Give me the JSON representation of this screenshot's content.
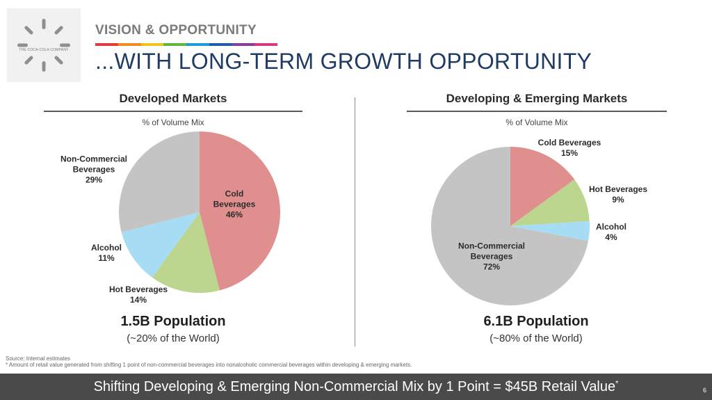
{
  "logo": {
    "text": "THE COCA-COLA COMPANY"
  },
  "header": {
    "section_label": "VISION & OPPORTUNITY",
    "title": "...WITH LONG-TERM GROWTH OPPORTUNITY",
    "stripe_colors": [
      "#e03a3a",
      "#f08a24",
      "#f4c31c",
      "#62b83f",
      "#1f9bd7",
      "#1f5ea8",
      "#8a3e9c",
      "#d63a82"
    ]
  },
  "chart_data": [
    {
      "type": "pie",
      "title": "Developed Markets",
      "subtitle": "% of Volume Mix",
      "slices": [
        {
          "name": "Cold Beverages",
          "value": 46,
          "label": "46%",
          "color": "#e08f8f"
        },
        {
          "name": "Hot Beverages",
          "value": 14,
          "label": "14%",
          "color": "#bcd68f"
        },
        {
          "name": "Alcohol",
          "value": 11,
          "label": "11%",
          "color": "#a6dcf4"
        },
        {
          "name": "Non-Commercial Beverages",
          "value": 29,
          "label": "29%",
          "color": "#c4c4c4"
        }
      ],
      "population": "1.5B Population",
      "population_note": "(~20% of the World)"
    },
    {
      "type": "pie",
      "title": "Developing & Emerging Markets",
      "subtitle": "% of Volume Mix",
      "slices": [
        {
          "name": "Cold Beverages",
          "value": 15,
          "label": "15%",
          "color": "#e08f8f"
        },
        {
          "name": "Hot Beverages",
          "value": 9,
          "label": "9%",
          "color": "#bcd68f"
        },
        {
          "name": "Alcohol",
          "value": 4,
          "label": "4%",
          "color": "#a6dcf4"
        },
        {
          "name": "Non-Commercial Beverages",
          "value": 72,
          "label": "72%",
          "color": "#c4c4c4"
        }
      ],
      "population": "6.1B Population",
      "population_note": "(~80% of the World)"
    }
  ],
  "footnotes": {
    "source": "Source: Internal estimates",
    "asterisk": "* Amount of retail value generated from shifting 1 point of non-commercial beverages into nonalcoholic commercial beverages within developing & emerging markets."
  },
  "footer": {
    "text": "Shifting Developing & Emerging Non-Commercial Mix by 1 Point = $45B Retail Value",
    "mark": "*",
    "page": "6"
  }
}
